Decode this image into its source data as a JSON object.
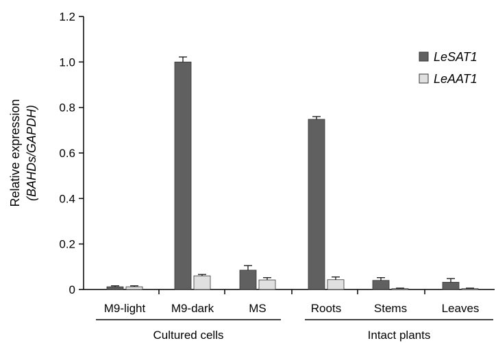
{
  "chart_data": {
    "type": "bar",
    "ylabel": "Relative expression",
    "ylabel_sub": "(BAHDs/GAPDH)",
    "ylim": [
      0,
      1.2
    ],
    "yticks": [
      "0",
      "0.2",
      "0.4",
      "0.6",
      "0.8",
      "1.0",
      "1.2"
    ],
    "categories": [
      "M9-light",
      "M9-dark",
      "MS",
      "Roots",
      "Stems",
      "Leaves"
    ],
    "groups": [
      {
        "label": "Cultured cells",
        "categories": [
          "M9-light",
          "M9-dark",
          "MS"
        ]
      },
      {
        "label": "Intact plants",
        "categories": [
          "Roots",
          "Stems",
          "Leaves"
        ]
      }
    ],
    "series": [
      {
        "name": "LeSAT1",
        "color": "#606060",
        "values": [
          0.012,
          1.0,
          0.085,
          0.748,
          0.04,
          0.032
        ],
        "errors": [
          0.004,
          0.022,
          0.02,
          0.012,
          0.012,
          0.016
        ]
      },
      {
        "name": "LeAAT1",
        "color": "#e0e0e0",
        "values": [
          0.012,
          0.06,
          0.042,
          0.043,
          0.004,
          0.004
        ],
        "errors": [
          0.004,
          0.006,
          0.01,
          0.012,
          0.002,
          0.002
        ]
      }
    ],
    "legend_position": "top-right",
    "grid": false
  }
}
